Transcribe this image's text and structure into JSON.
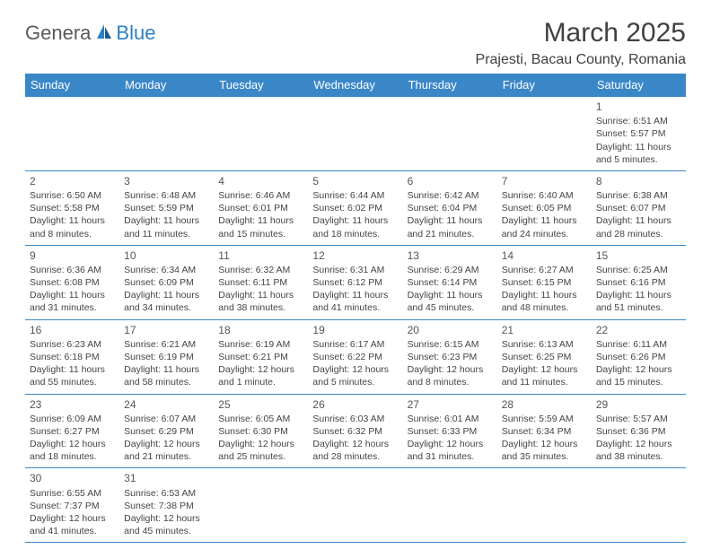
{
  "logo": {
    "part1": "Genera",
    "part2": "Blue"
  },
  "title": "March 2025",
  "location": "Prajesti, Bacau County, Romania",
  "colors": {
    "header_bg": "#3a87c8",
    "header_text": "#ffffff",
    "border": "#3a87c8",
    "logo_gray": "#5a5a5a",
    "logo_blue": "#2d7fc1"
  },
  "weekdays": [
    "Sunday",
    "Monday",
    "Tuesday",
    "Wednesday",
    "Thursday",
    "Friday",
    "Saturday"
  ],
  "weeks": [
    [
      null,
      null,
      null,
      null,
      null,
      null,
      {
        "d": "1",
        "sr": "Sunrise: 6:51 AM",
        "ss": "Sunset: 5:57 PM",
        "dl": "Daylight: 11 hours and 5 minutes."
      }
    ],
    [
      {
        "d": "2",
        "sr": "Sunrise: 6:50 AM",
        "ss": "Sunset: 5:58 PM",
        "dl": "Daylight: 11 hours and 8 minutes."
      },
      {
        "d": "3",
        "sr": "Sunrise: 6:48 AM",
        "ss": "Sunset: 5:59 PM",
        "dl": "Daylight: 11 hours and 11 minutes."
      },
      {
        "d": "4",
        "sr": "Sunrise: 6:46 AM",
        "ss": "Sunset: 6:01 PM",
        "dl": "Daylight: 11 hours and 15 minutes."
      },
      {
        "d": "5",
        "sr": "Sunrise: 6:44 AM",
        "ss": "Sunset: 6:02 PM",
        "dl": "Daylight: 11 hours and 18 minutes."
      },
      {
        "d": "6",
        "sr": "Sunrise: 6:42 AM",
        "ss": "Sunset: 6:04 PM",
        "dl": "Daylight: 11 hours and 21 minutes."
      },
      {
        "d": "7",
        "sr": "Sunrise: 6:40 AM",
        "ss": "Sunset: 6:05 PM",
        "dl": "Daylight: 11 hours and 24 minutes."
      },
      {
        "d": "8",
        "sr": "Sunrise: 6:38 AM",
        "ss": "Sunset: 6:07 PM",
        "dl": "Daylight: 11 hours and 28 minutes."
      }
    ],
    [
      {
        "d": "9",
        "sr": "Sunrise: 6:36 AM",
        "ss": "Sunset: 6:08 PM",
        "dl": "Daylight: 11 hours and 31 minutes."
      },
      {
        "d": "10",
        "sr": "Sunrise: 6:34 AM",
        "ss": "Sunset: 6:09 PM",
        "dl": "Daylight: 11 hours and 34 minutes."
      },
      {
        "d": "11",
        "sr": "Sunrise: 6:32 AM",
        "ss": "Sunset: 6:11 PM",
        "dl": "Daylight: 11 hours and 38 minutes."
      },
      {
        "d": "12",
        "sr": "Sunrise: 6:31 AM",
        "ss": "Sunset: 6:12 PM",
        "dl": "Daylight: 11 hours and 41 minutes."
      },
      {
        "d": "13",
        "sr": "Sunrise: 6:29 AM",
        "ss": "Sunset: 6:14 PM",
        "dl": "Daylight: 11 hours and 45 minutes."
      },
      {
        "d": "14",
        "sr": "Sunrise: 6:27 AM",
        "ss": "Sunset: 6:15 PM",
        "dl": "Daylight: 11 hours and 48 minutes."
      },
      {
        "d": "15",
        "sr": "Sunrise: 6:25 AM",
        "ss": "Sunset: 6:16 PM",
        "dl": "Daylight: 11 hours and 51 minutes."
      }
    ],
    [
      {
        "d": "16",
        "sr": "Sunrise: 6:23 AM",
        "ss": "Sunset: 6:18 PM",
        "dl": "Daylight: 11 hours and 55 minutes."
      },
      {
        "d": "17",
        "sr": "Sunrise: 6:21 AM",
        "ss": "Sunset: 6:19 PM",
        "dl": "Daylight: 11 hours and 58 minutes."
      },
      {
        "d": "18",
        "sr": "Sunrise: 6:19 AM",
        "ss": "Sunset: 6:21 PM",
        "dl": "Daylight: 12 hours and 1 minute."
      },
      {
        "d": "19",
        "sr": "Sunrise: 6:17 AM",
        "ss": "Sunset: 6:22 PM",
        "dl": "Daylight: 12 hours and 5 minutes."
      },
      {
        "d": "20",
        "sr": "Sunrise: 6:15 AM",
        "ss": "Sunset: 6:23 PM",
        "dl": "Daylight: 12 hours and 8 minutes."
      },
      {
        "d": "21",
        "sr": "Sunrise: 6:13 AM",
        "ss": "Sunset: 6:25 PM",
        "dl": "Daylight: 12 hours and 11 minutes."
      },
      {
        "d": "22",
        "sr": "Sunrise: 6:11 AM",
        "ss": "Sunset: 6:26 PM",
        "dl": "Daylight: 12 hours and 15 minutes."
      }
    ],
    [
      {
        "d": "23",
        "sr": "Sunrise: 6:09 AM",
        "ss": "Sunset: 6:27 PM",
        "dl": "Daylight: 12 hours and 18 minutes."
      },
      {
        "d": "24",
        "sr": "Sunrise: 6:07 AM",
        "ss": "Sunset: 6:29 PM",
        "dl": "Daylight: 12 hours and 21 minutes."
      },
      {
        "d": "25",
        "sr": "Sunrise: 6:05 AM",
        "ss": "Sunset: 6:30 PM",
        "dl": "Daylight: 12 hours and 25 minutes."
      },
      {
        "d": "26",
        "sr": "Sunrise: 6:03 AM",
        "ss": "Sunset: 6:32 PM",
        "dl": "Daylight: 12 hours and 28 minutes."
      },
      {
        "d": "27",
        "sr": "Sunrise: 6:01 AM",
        "ss": "Sunset: 6:33 PM",
        "dl": "Daylight: 12 hours and 31 minutes."
      },
      {
        "d": "28",
        "sr": "Sunrise: 5:59 AM",
        "ss": "Sunset: 6:34 PM",
        "dl": "Daylight: 12 hours and 35 minutes."
      },
      {
        "d": "29",
        "sr": "Sunrise: 5:57 AM",
        "ss": "Sunset: 6:36 PM",
        "dl": "Daylight: 12 hours and 38 minutes."
      }
    ],
    [
      {
        "d": "30",
        "sr": "Sunrise: 6:55 AM",
        "ss": "Sunset: 7:37 PM",
        "dl": "Daylight: 12 hours and 41 minutes."
      },
      {
        "d": "31",
        "sr": "Sunrise: 6:53 AM",
        "ss": "Sunset: 7:38 PM",
        "dl": "Daylight: 12 hours and 45 minutes."
      },
      null,
      null,
      null,
      null,
      null
    ]
  ]
}
